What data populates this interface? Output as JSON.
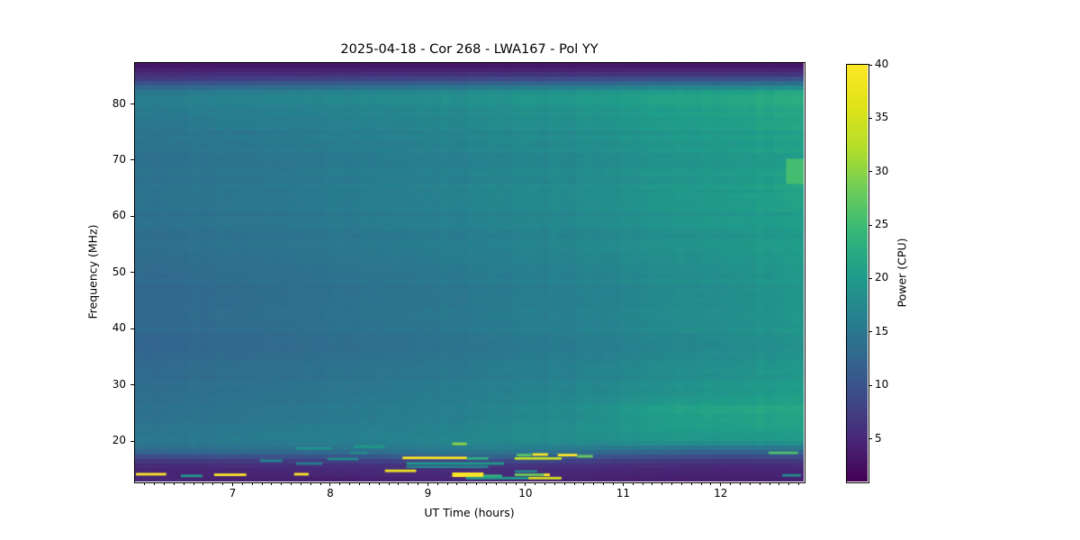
{
  "chart_data": {
    "type": "heatmap",
    "title": "2025-04-18 - Cor 268 - LWA167 - Pol YY",
    "xlabel": "UT Time (hours)",
    "ylabel": "Frequency (MHz)",
    "xlim": [
      6.0,
      12.85
    ],
    "ylim": [
      12.8,
      87.3
    ],
    "x_major_ticks": [
      7,
      8,
      9,
      10,
      11,
      12
    ],
    "x_minor_tick_step": 0.1,
    "y_ticks": [
      20,
      30,
      40,
      50,
      60,
      70,
      80
    ],
    "grid_on": false,
    "colorbar": {
      "label": "Power (CPU)",
      "ticks": [
        5,
        10,
        15,
        20,
        25,
        30,
        35,
        40
      ],
      "vmin": 1,
      "vmax": 40,
      "colormap": "viridis"
    },
    "grid": {
      "times": [
        6.0,
        6.5,
        7.0,
        7.5,
        8.0,
        8.5,
        9.0,
        9.5,
        10.0,
        10.5,
        11.0,
        11.5,
        12.0,
        12.4,
        12.85
      ],
      "freqs": [
        87.5,
        86.5,
        85.5,
        84.5,
        83.5,
        82.6,
        81.8,
        81.0,
        79.5,
        77.0,
        70.5,
        67.0,
        63.5,
        60.0,
        56.5,
        49.5,
        46.0,
        43.0,
        40.0,
        37.0,
        34.0,
        28.0,
        25.5,
        23.5,
        21.5,
        19.8,
        18.3,
        17.2,
        16.2,
        15.2,
        14.2,
        13.4,
        12.8
      ],
      "values": [
        [
          2.5,
          2.5,
          2.5,
          2.5,
          2.5,
          2.5,
          2.5,
          2.5,
          2.5,
          2.5,
          2.5,
          2.5,
          2.5,
          2.5,
          2.5
        ],
        [
          3.5,
          3.5,
          3.5,
          3.5,
          3.5,
          3.5,
          3.6,
          3.6,
          3.6,
          3.6,
          3.7,
          3.7,
          3.7,
          3.7,
          3.7
        ],
        [
          5.0,
          5.0,
          5.0,
          5.1,
          5.1,
          5.2,
          5.2,
          5.3,
          5.3,
          5.4,
          5.4,
          5.5,
          5.5,
          5.5,
          5.5
        ],
        [
          7.0,
          7.2,
          7.4,
          7.6,
          7.8,
          8.0,
          8.2,
          8.4,
          8.6,
          8.8,
          9.0,
          9.2,
          9.4,
          9.5,
          9.6
        ],
        [
          10.5,
          10.8,
          11.0,
          11.3,
          11.6,
          12.0,
          12.3,
          12.6,
          13.0,
          13.3,
          13.7,
          14.0,
          14.3,
          14.5,
          14.6
        ],
        [
          14.0,
          14.4,
          14.8,
          15.2,
          15.6,
          16.0,
          16.5,
          17.0,
          17.5,
          18.0,
          18.6,
          19.2,
          19.8,
          20.2,
          20.4
        ],
        [
          16.0,
          16.4,
          16.8,
          17.2,
          17.6,
          18.0,
          18.5,
          19.0,
          19.5,
          20.0,
          20.8,
          21.5,
          22.2,
          22.8,
          23.0
        ],
        [
          16.2,
          16.6,
          17.0,
          17.3,
          17.6,
          18.0,
          18.4,
          18.9,
          19.4,
          20.0,
          20.8,
          21.4,
          22.0,
          22.6,
          22.8
        ],
        [
          15.3,
          15.7,
          16.0,
          16.3,
          16.6,
          17.0,
          17.4,
          17.8,
          18.3,
          18.8,
          19.6,
          20.3,
          21.0,
          21.4,
          21.6
        ],
        [
          14.9,
          15.2,
          15.5,
          15.8,
          16.2,
          16.6,
          17.0,
          17.4,
          17.9,
          18.4,
          19.2,
          19.9,
          20.6,
          21.0,
          21.2
        ],
        [
          14.2,
          14.5,
          14.8,
          15.1,
          15.5,
          15.9,
          16.3,
          16.7,
          17.2,
          17.7,
          18.5,
          19.2,
          19.9,
          20.3,
          20.5
        ],
        [
          14.1,
          14.4,
          14.7,
          15.0,
          15.4,
          15.8,
          16.2,
          16.6,
          17.1,
          17.6,
          18.4,
          19.1,
          19.8,
          20.3,
          21.0
        ],
        [
          14.4,
          14.7,
          15.0,
          15.3,
          15.7,
          16.1,
          16.6,
          17.1,
          17.6,
          18.1,
          18.9,
          19.6,
          20.4,
          20.9,
          21.3
        ],
        [
          13.9,
          14.2,
          14.5,
          14.8,
          15.2,
          15.6,
          16.0,
          16.4,
          16.9,
          17.4,
          18.2,
          18.9,
          19.6,
          20.0,
          20.2
        ],
        [
          13.5,
          13.8,
          14.1,
          14.4,
          14.8,
          15.2,
          15.6,
          16.0,
          16.5,
          17.0,
          17.8,
          18.5,
          19.2,
          19.6,
          19.8
        ],
        [
          13.1,
          13.4,
          13.7,
          14.0,
          14.4,
          14.8,
          15.2,
          15.6,
          16.1,
          16.6,
          17.4,
          18.1,
          18.8,
          19.3,
          19.6
        ],
        [
          12.5,
          12.8,
          13.1,
          13.4,
          13.7,
          14.1,
          14.5,
          14.9,
          15.4,
          15.9,
          16.7,
          17.4,
          18.1,
          18.6,
          18.9
        ],
        [
          13.0,
          13.3,
          13.6,
          13.9,
          14.3,
          14.7,
          15.1,
          15.5,
          16.0,
          16.5,
          17.3,
          18.0,
          18.7,
          19.2,
          19.5
        ],
        [
          12.8,
          13.1,
          13.4,
          13.7,
          14.1,
          14.5,
          14.9,
          15.3,
          15.8,
          16.3,
          17.1,
          17.8,
          18.5,
          19.0,
          19.3
        ],
        [
          12.4,
          12.7,
          13.0,
          13.3,
          13.6,
          14.0,
          14.4,
          14.8,
          15.3,
          15.8,
          16.6,
          17.3,
          18.0,
          18.5,
          18.8
        ],
        [
          12.8,
          13.1,
          13.4,
          13.7,
          14.0,
          14.4,
          14.8,
          15.2,
          15.7,
          16.2,
          17.0,
          17.7,
          18.4,
          18.9,
          19.2
        ],
        [
          13.6,
          13.9,
          14.2,
          14.5,
          14.9,
          15.3,
          15.7,
          16.1,
          16.6,
          17.2,
          18.1,
          18.9,
          19.6,
          20.1,
          20.4
        ],
        [
          14.0,
          14.3,
          14.6,
          14.9,
          15.3,
          15.7,
          16.1,
          16.6,
          17.2,
          18.0,
          19.5,
          21.0,
          21.8,
          22.0,
          21.6
        ],
        [
          14.2,
          14.5,
          14.8,
          15.1,
          15.4,
          15.8,
          16.2,
          16.7,
          17.3,
          18.0,
          19.2,
          20.4,
          21.2,
          21.4,
          21.0
        ],
        [
          14.6,
          14.9,
          15.2,
          15.5,
          15.8,
          16.2,
          16.6,
          17.0,
          17.6,
          18.2,
          19.0,
          19.6,
          20.0,
          20.2,
          20.0
        ],
        [
          15.0,
          15.2,
          15.5,
          15.8,
          16.0,
          16.4,
          16.8,
          17.2,
          17.6,
          18.0,
          18.4,
          18.8,
          19.0,
          19.2,
          19.0
        ],
        [
          13.5,
          13.7,
          14.0,
          14.2,
          14.5,
          15.0,
          15.8,
          16.0,
          15.8,
          15.0,
          14.0,
          13.5,
          13.2,
          13.2,
          13.5
        ],
        [
          9.0,
          9.2,
          9.5,
          9.8,
          10.0,
          10.5,
          11.5,
          12.0,
          11.5,
          10.5,
          9.5,
          9.0,
          8.8,
          8.8,
          9.0
        ],
        [
          6.0,
          6.1,
          6.3,
          6.5,
          6.7,
          7.0,
          7.5,
          7.8,
          7.5,
          7.0,
          6.5,
          6.2,
          6.0,
          6.0,
          6.2
        ],
        [
          4.8,
          4.9,
          5.0,
          5.1,
          5.2,
          5.4,
          5.6,
          5.8,
          5.6,
          5.3,
          5.0,
          4.9,
          4.8,
          4.8,
          5.0
        ],
        [
          4.2,
          4.3,
          4.4,
          4.5,
          4.6,
          4.8,
          5.0,
          5.2,
          5.0,
          4.7,
          4.4,
          4.3,
          4.2,
          4.2,
          4.4
        ],
        [
          5.5,
          5.0,
          4.5,
          4.3,
          4.2,
          4.5,
          5.0,
          5.5,
          5.0,
          4.5,
          4.2,
          4.0,
          4.0,
          4.0,
          4.5
        ],
        [
          3.5,
          3.5,
          3.5,
          3.5,
          3.5,
          3.5,
          3.5,
          3.5,
          3.5,
          3.5,
          3.5,
          3.5,
          3.5,
          3.5,
          3.5
        ]
      ]
    },
    "rfi_streaks": [
      {
        "t0": 9.25,
        "t1": 9.4,
        "f": 19.5,
        "v": 30
      },
      {
        "t0": 8.74,
        "t1": 9.4,
        "f": 17.0,
        "v": 40
      },
      {
        "t0": 9.4,
        "t1": 9.62,
        "f": 16.9,
        "v": 23
      },
      {
        "t0": 9.89,
        "t1": 10.37,
        "f": 16.9,
        "v": 33
      },
      {
        "t0": 9.91,
        "t1": 10.06,
        "f": 17.5,
        "v": 27
      },
      {
        "t0": 10.07,
        "t1": 10.23,
        "f": 17.6,
        "v": 40
      },
      {
        "t0": 10.33,
        "t1": 10.53,
        "f": 17.5,
        "v": 40
      },
      {
        "t0": 10.53,
        "t1": 10.69,
        "f": 17.3,
        "v": 28
      },
      {
        "t0": 12.49,
        "t1": 12.79,
        "f": 17.9,
        "v": 26
      },
      {
        "t0": 8.78,
        "t1": 9.78,
        "f": 16.0,
        "v": 20
      },
      {
        "t0": 8.78,
        "t1": 9.62,
        "f": 15.4,
        "v": 17
      },
      {
        "t0": 9.89,
        "t1": 10.12,
        "f": 14.6,
        "v": 16
      },
      {
        "t0": 9.25,
        "t1": 9.57,
        "f": 14.0,
        "v": 40,
        "h": 0.8
      },
      {
        "t0": 9.57,
        "t1": 9.76,
        "f": 13.8,
        "v": 24
      },
      {
        "t0": 9.89,
        "t1": 10.21,
        "f": 14.0,
        "v": 28
      },
      {
        "t0": 10.19,
        "t1": 10.25,
        "f": 14.0,
        "v": 40
      },
      {
        "t0": 6.01,
        "t1": 6.32,
        "f": 14.1,
        "v": 40
      },
      {
        "t0": 6.47,
        "t1": 6.69,
        "f": 13.8,
        "v": 20
      },
      {
        "t0": 6.81,
        "t1": 7.14,
        "f": 14.0,
        "v": 40
      },
      {
        "t0": 7.63,
        "t1": 7.78,
        "f": 14.1,
        "v": 40
      },
      {
        "t0": 7.28,
        "t1": 7.51,
        "f": 16.5,
        "v": 17
      },
      {
        "t0": 7.97,
        "t1": 8.29,
        "f": 16.8,
        "v": 18
      },
      {
        "t0": 7.65,
        "t1": 7.92,
        "f": 16.0,
        "v": 16
      },
      {
        "t0": 8.2,
        "t1": 8.38,
        "f": 17.9,
        "v": 18
      },
      {
        "t0": 8.56,
        "t1": 8.88,
        "f": 14.7,
        "v": 38
      },
      {
        "t0": 9.39,
        "t1": 10.03,
        "f": 13.4,
        "v": 20
      },
      {
        "t0": 10.03,
        "t1": 10.37,
        "f": 13.4,
        "v": 35
      },
      {
        "t0": 7.65,
        "t1": 8.01,
        "f": 18.7,
        "v": 19
      },
      {
        "t0": 8.24,
        "t1": 8.56,
        "f": 19.0,
        "v": 19.5
      },
      {
        "t0": 12.63,
        "t1": 12.82,
        "f": 13.9,
        "v": 18
      },
      {
        "t0": 12.67,
        "t1": 12.85,
        "f": 68.0,
        "v": 25.5,
        "h": 4.5
      }
    ]
  },
  "colors": {
    "background": "#ffffff",
    "text": "#000000",
    "frame": "#000000",
    "viridis_stops": [
      [
        0.0,
        "#440154"
      ],
      [
        0.1,
        "#482878"
      ],
      [
        0.2,
        "#3e4a89"
      ],
      [
        0.3,
        "#31688e"
      ],
      [
        0.4,
        "#26828e"
      ],
      [
        0.5,
        "#1f9e89"
      ],
      [
        0.6,
        "#35b779"
      ],
      [
        0.7,
        "#6dcd59"
      ],
      [
        0.8,
        "#b4de2c"
      ],
      [
        0.9,
        "#dfe318"
      ],
      [
        1.0,
        "#fde725"
      ]
    ]
  }
}
